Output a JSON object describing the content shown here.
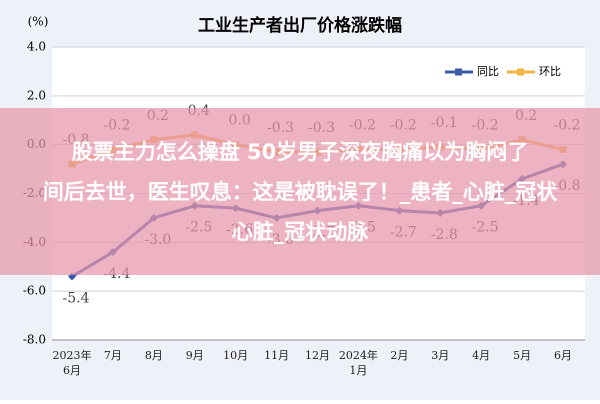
{
  "chart_data": {
    "type": "line",
    "title": "工业生产者出厂价格涨跌幅",
    "y_label": "(%)",
    "categories": [
      "2023年6月",
      "7月",
      "8月",
      "9月",
      "10月",
      "11月",
      "12月",
      "2024年1月",
      "2月",
      "3月",
      "4月",
      "5月",
      "6月"
    ],
    "series": [
      {
        "name": "同比",
        "color": "#3a5ca8",
        "values": [
          -5.4,
          -4.4,
          -3.0,
          -2.5,
          -2.6,
          -3.0,
          -2.7,
          -2.5,
          -2.7,
          -2.8,
          -2.5,
          -1.4,
          -0.8
        ],
        "value_labels": [
          "-5.4",
          "-4.4",
          "-3.0",
          "-2.5",
          "-2.6",
          "-3.0",
          "-2.7",
          "-2.5",
          "-2.7",
          "-2.8",
          "-2.5",
          "-1.4",
          "-0.8"
        ]
      },
      {
        "name": "环比",
        "color": "#f2b347",
        "values": [
          -0.8,
          -0.2,
          0.2,
          0.4,
          0.0,
          -0.3,
          -0.3,
          -0.2,
          -0.2,
          -0.1,
          -0.2,
          0.2,
          -0.2
        ],
        "value_labels": [
          "-0.8",
          "-0.2",
          "0.2",
          "0.4",
          "0.0",
          "-0.3",
          "-0.3",
          "-0.2",
          "-0.2",
          "-0.1",
          "-0.2",
          "0.2",
          "-0.2"
        ]
      }
    ],
    "ylim": [
      -8,
      4
    ],
    "yticks": [
      {
        "value": -8,
        "label": "-8.0"
      },
      {
        "value": -6,
        "label": "-6.0"
      },
      {
        "value": -4,
        "label": "-4.0"
      },
      {
        "value": -2,
        "label": "-2.0"
      },
      {
        "value": 0,
        "label": "0.0"
      },
      {
        "value": 2,
        "label": "2.0"
      },
      {
        "value": 4,
        "label": "4.0"
      }
    ],
    "grid": true,
    "legend": "top-right"
  },
  "banner": {
    "lines": [
      "股票主力怎么操盘 50岁男子深夜胸痛以为胸闷了",
      "间后去世，医生叹息：这是被耽误了！_患者_心脏_冠状",
      "心脏_冠状动脉"
    ]
  }
}
